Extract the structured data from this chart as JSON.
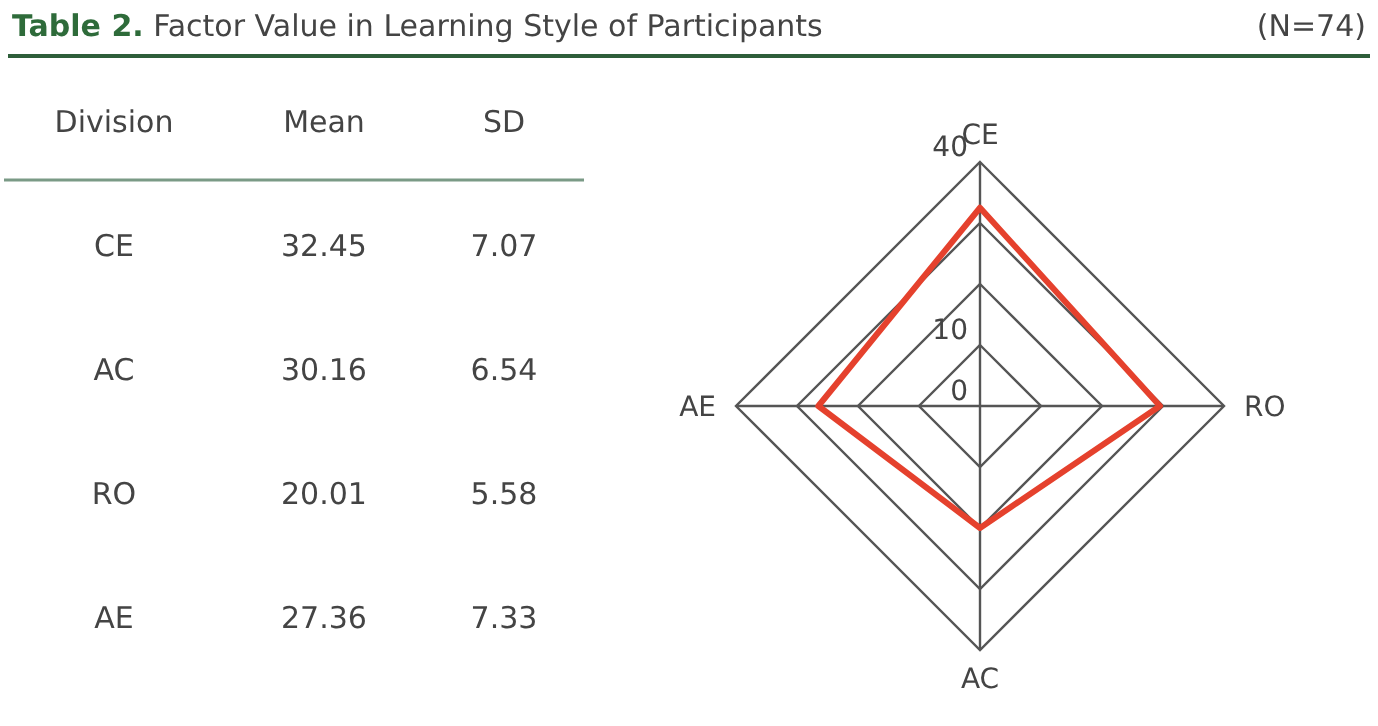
{
  "chart_data": [
    {
      "type": "other",
      "title": "Table 2. Factor Value in Learning Style of Participants",
      "xlabel": "Division",
      "annotations": [
        "(N=74)"
      ],
      "categories": [
        "CE",
        "AC",
        "RO",
        "AE"
      ],
      "data_labels": true,
      "series": [
        {
          "name": "Mean",
          "values": [
            32.45,
            30.16,
            20.01,
            27.36
          ]
        },
        {
          "name": "SD",
          "values": [
            7.07,
            6.54,
            5.58,
            7.33
          ]
        }
      ]
    },
    {
      "type": "radar",
      "categories": [
        "CE",
        "RO",
        "AC",
        "AE"
      ],
      "ylim": [
        0,
        40
      ],
      "yticks": [
        0,
        10,
        40
      ],
      "series": [
        {
          "color": "#e5412d",
          "values": [
            32.5,
            29.5,
            20,
            26.5
          ]
        }
      ]
    }
  ]
}
